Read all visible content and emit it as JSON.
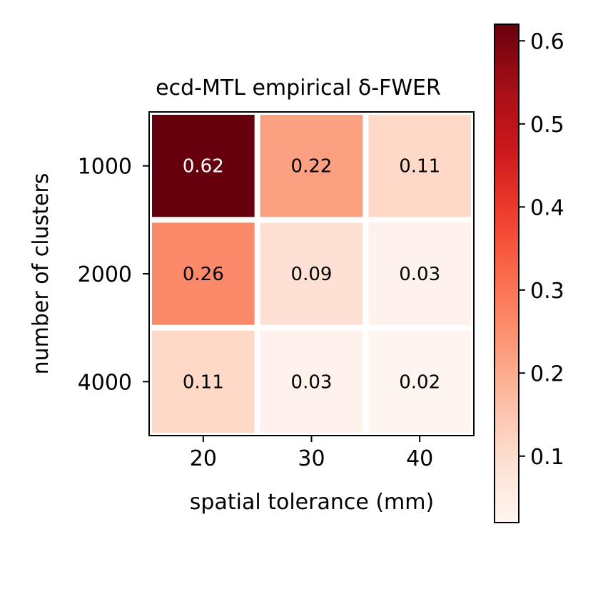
{
  "chart_data": {
    "type": "heatmap",
    "title": "ecd-MTL empirical δ-FWER",
    "xlabel": "spatial tolerance (mm)",
    "ylabel": "number of clusters",
    "x_categories": [
      "20",
      "30",
      "40"
    ],
    "y_categories": [
      "1000",
      "2000",
      "4000"
    ],
    "values": [
      [
        0.62,
        0.22,
        0.11
      ],
      [
        0.26,
        0.09,
        0.03
      ],
      [
        0.11,
        0.03,
        0.02
      ]
    ],
    "cell_labels": [
      [
        "0.62",
        "0.22",
        "0.11"
      ],
      [
        "0.26",
        "0.09",
        "0.03"
      ],
      [
        "0.11",
        "0.03",
        "0.02"
      ]
    ],
    "colormap": "Reds",
    "colorbar": {
      "range": [
        0.02,
        0.62
      ],
      "ticks": [
        0.1,
        0.2,
        0.3,
        0.4,
        0.5,
        0.6
      ],
      "tick_labels": [
        "0.1",
        "0.2",
        "0.3",
        "0.4",
        "0.5",
        "0.6"
      ],
      "placement": "right"
    },
    "cell_border_color": "#ffffff",
    "grid": false
  }
}
